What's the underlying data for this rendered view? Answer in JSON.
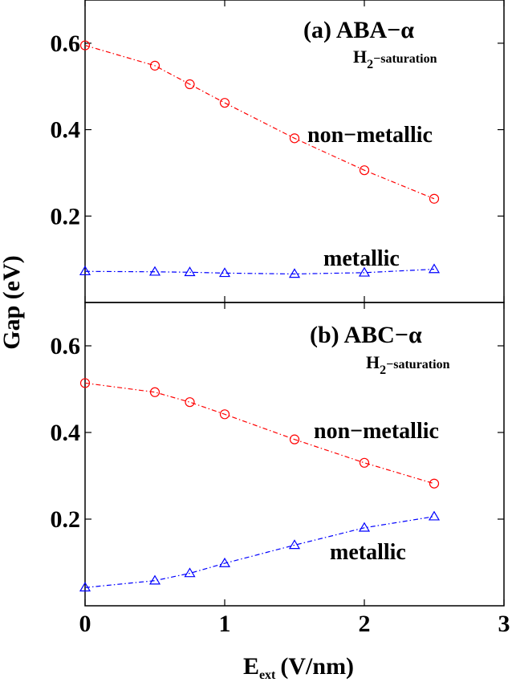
{
  "chart_data": [
    {
      "type": "line",
      "panel_title": "(a)  ABA−α",
      "panel_subtitle_main": "H",
      "panel_subtitle_sub": "2",
      "panel_subtitle_rest": "−saturation",
      "x": [
        0,
        0.5,
        0.75,
        1,
        1.5,
        2,
        2.5
      ],
      "xlim": [
        0,
        3
      ],
      "ylim": [
        0,
        0.7
      ],
      "yticks": [
        0.2,
        0.4,
        0.6
      ],
      "ytick_labels": [
        "0.2",
        "0.4",
        "0.6"
      ],
      "grid": false,
      "series": [
        {
          "name": "non−metallic",
          "color": "#ff0000",
          "marker": "circle",
          "values": [
            0.595,
            0.548,
            0.505,
            0.462,
            0.38,
            0.306,
            0.24
          ]
        },
        {
          "name": "metallic",
          "color": "#0000ff",
          "marker": "triangle",
          "values": [
            0.072,
            0.071,
            0.07,
            0.068,
            0.066,
            0.069,
            0.077
          ]
        }
      ]
    },
    {
      "type": "line",
      "panel_title": "(b)  ABC−α",
      "panel_subtitle_main": "H",
      "panel_subtitle_sub": "2",
      "panel_subtitle_rest": "−saturation",
      "x": [
        0,
        0.5,
        0.75,
        1,
        1.5,
        2,
        2.5
      ],
      "xlim": [
        0,
        3
      ],
      "xticks": [
        0,
        1,
        2,
        3
      ],
      "xtick_labels": [
        "0",
        "1",
        "2",
        "3"
      ],
      "ylim": [
        0,
        0.7
      ],
      "yticks": [
        0.2,
        0.4,
        0.6
      ],
      "ytick_labels": [
        "0.2",
        "0.4",
        "0.6"
      ],
      "grid": false,
      "series": [
        {
          "name": "non−metallic",
          "color": "#ff0000",
          "marker": "circle",
          "values": [
            0.514,
            0.493,
            0.47,
            0.442,
            0.384,
            0.33,
            0.282
          ]
        },
        {
          "name": "metallic",
          "color": "#0000ff",
          "marker": "triangle",
          "values": [
            0.042,
            0.058,
            0.075,
            0.098,
            0.14,
            0.18,
            0.206
          ]
        }
      ]
    }
  ],
  "ylabel": "Gap (eV)",
  "xlabel_main": "E",
  "xlabel_sub": "ext",
  "xlabel_unit": "(V/nm)"
}
